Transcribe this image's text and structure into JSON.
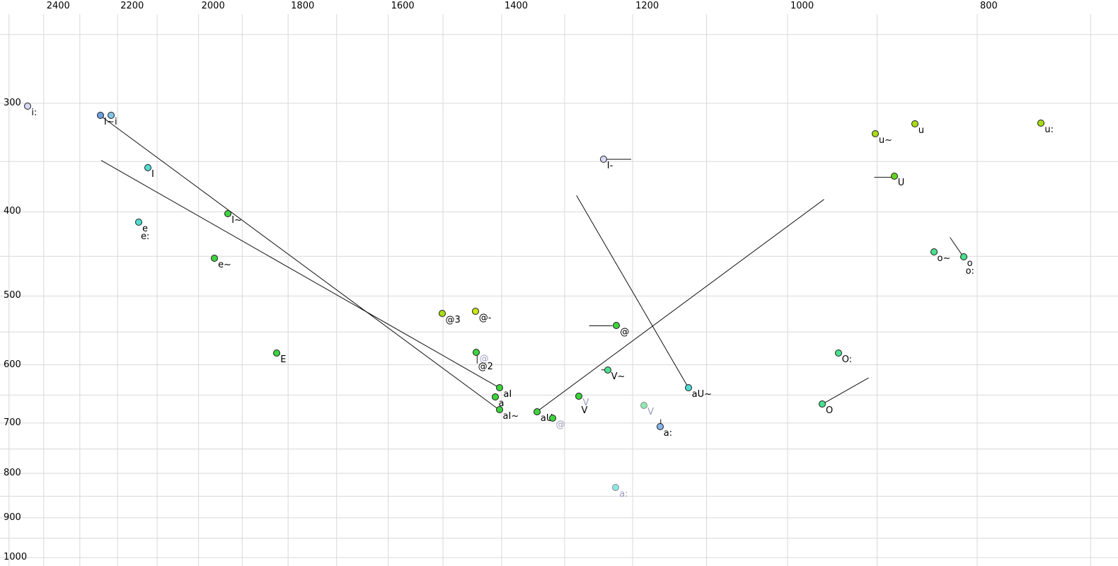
{
  "chart_data": {
    "type": "scatter",
    "title": "",
    "description": "Vowel formant plot (F2 horizontal reversed log scale in Hz, F1 vertical reversed-growth log scale in Hz) with vowel tokens and diphthong trajectory lines",
    "x_axis": {
      "unit": "Hz",
      "scale": "log",
      "reversed": true,
      "tick_labels": [
        "2400",
        "2200",
        "2000",
        "1800",
        "1600",
        "1400",
        "1200",
        "1000",
        "800"
      ],
      "tick_values": [
        2400,
        2200,
        2000,
        1800,
        1600,
        1400,
        1200,
        1000,
        800
      ],
      "gridline_values": [
        2500,
        2400,
        2300,
        2200,
        2100,
        2000,
        1900,
        1800,
        1700,
        1600,
        1500,
        1400,
        1300,
        1200,
        1100,
        1000,
        900,
        800,
        700
      ],
      "range": [
        2550,
        690
      ]
    },
    "y_axis": {
      "unit": "Hz",
      "scale": "log",
      "tick_labels": [
        "300",
        "400",
        "500",
        "600",
        "700",
        "800",
        "900",
        "1000"
      ],
      "tick_values": [
        300,
        400,
        500,
        600,
        700,
        800,
        900,
        1000
      ],
      "gridline_values": [
        250,
        300,
        350,
        400,
        450,
        500,
        550,
        600,
        650,
        700,
        750,
        800,
        850,
        900,
        950,
        1000
      ],
      "range": [
        245,
        1010
      ]
    },
    "grid": true,
    "legend": "none",
    "palette": {
      "green": "#3dd33d",
      "spring": "#4ae08e",
      "turquoise": "#50dcd2",
      "yellowgreen": "#a8dc14",
      "yellow": "#cbe60e",
      "ugreen": "#63d31c",
      "cornflower": "#6da0e2",
      "skyblue": "#85c6ea",
      "lavender": "#d8d8f4",
      "blue": "#85b5ea",
      "palegreen": "#8ce9ad",
      "palecyan": "#8ae8e4",
      "label_black": "#000000",
      "label_light": "#9d9dbd",
      "grid_gray": "#d9d9d9",
      "line_black": "#111111"
    },
    "points": [
      {
        "f2": 2445,
        "f1": 302,
        "fill": "lavender",
        "labels": [
          {
            "text": "i:",
            "color": "black"
          }
        ]
      },
      {
        "f2": 2245,
        "f1": 310,
        "fill": "cornflower",
        "labels": [
          {
            "text": "I~",
            "color": "black"
          }
        ]
      },
      {
        "f2": 2217,
        "f1": 310,
        "fill": "skyblue",
        "labels": [
          {
            "text": "i",
            "color": "black"
          }
        ]
      },
      {
        "f2": 2123,
        "f1": 356,
        "fill": "turquoise",
        "labels": [
          {
            "text": "I",
            "color": "black"
          }
        ]
      },
      {
        "f2": 2146,
        "f1": 411,
        "fill": "turquoise",
        "labels": [
          {
            "text": "e",
            "color": "black"
          },
          {
            "text": "e:",
            "color": "black"
          }
        ]
      },
      {
        "f2": 1932,
        "f1": 402,
        "fill": "green",
        "labels": [
          {
            "text": "I~",
            "color": "black"
          }
        ]
      },
      {
        "f2": 1963,
        "f1": 452,
        "fill": "green",
        "labels": [
          {
            "text": "e~",
            "color": "black"
          }
        ]
      },
      {
        "f2": 1824,
        "f1": 581,
        "fill": "green",
        "labels": [
          {
            "text": "E",
            "color": "black"
          }
        ]
      },
      {
        "f2": 1502,
        "f1": 524,
        "fill": "yellowgreen",
        "labels": [
          {
            "text": "@3",
            "color": "black"
          }
        ]
      },
      {
        "f2": 1444,
        "f1": 521,
        "fill": "yellow",
        "labels": [
          {
            "text": "@-",
            "color": "black"
          }
        ]
      },
      {
        "f2": 1443,
        "f1": 580,
        "fill": "green",
        "labels": [
          {
            "text": "@",
            "color": "light"
          },
          {
            "text": "@2",
            "color": "black"
          }
        ]
      },
      {
        "f2": 1403,
        "f1": 638,
        "fill": "green",
        "labels": [
          {
            "text": "aI",
            "color": "black"
          }
        ]
      },
      {
        "f2": 1411,
        "f1": 653,
        "fill": "green",
        "labels": [
          {
            "text": "a",
            "color": "black"
          }
        ]
      },
      {
        "f2": 1404,
        "f1": 676,
        "fill": "green",
        "labels": [
          {
            "text": "aI~",
            "color": "black"
          }
        ]
      },
      {
        "f2": 1343,
        "f1": 679,
        "fill": "green",
        "labels": [
          {
            "text": "aU",
            "color": "black"
          }
        ]
      },
      {
        "f2": 1319,
        "f1": 691,
        "fill": "green",
        "labels": [
          {
            "text": "@",
            "color": "light"
          }
        ]
      },
      {
        "f2": 1278,
        "f1": 652,
        "fill": "green",
        "labels": [
          {
            "text": "V",
            "color": "light"
          },
          {
            "text": "V",
            "color": "black"
          }
        ]
      },
      {
        "f2": 1184,
        "f1": 668,
        "fill": "palegreen",
        "stroke": "light",
        "labels": [
          {
            "text": "V",
            "color": "light"
          }
        ]
      },
      {
        "f2": 1162,
        "f1": 707,
        "fill": "blue",
        "labels": [
          {
            "text": "a:",
            "color": "black"
          }
        ]
      },
      {
        "f2": 1224,
        "f1": 831,
        "fill": "palecyan",
        "stroke": "light",
        "labels": [
          {
            "text": "a:",
            "color": "light"
          }
        ]
      },
      {
        "f2": 1236,
        "f1": 608,
        "fill": "spring",
        "labels": [
          {
            "text": "V~",
            "color": "black"
          }
        ]
      },
      {
        "f2": 1223,
        "f1": 541,
        "fill": "green",
        "labels": [
          {
            "text": "@",
            "color": "black"
          }
        ]
      },
      {
        "f2": 1242,
        "f1": 348,
        "fill": "lavender",
        "labels": [
          {
            "text": "I-",
            "color": "black"
          }
        ]
      },
      {
        "f2": 1124,
        "f1": 637,
        "fill": "turquoise",
        "labels": [
          {
            "text": "aU~",
            "color": "black"
          }
        ]
      },
      {
        "f2": 942,
        "f1": 581,
        "fill": "spring",
        "labels": [
          {
            "text": "O:",
            "color": "black"
          }
        ]
      },
      {
        "f2": 960,
        "f1": 666,
        "fill": "spring",
        "labels": [
          {
            "text": "O",
            "color": "black"
          }
        ]
      },
      {
        "f2": 842,
        "f1": 445,
        "fill": "spring",
        "labels": [
          {
            "text": "o~",
            "color": "black"
          }
        ]
      },
      {
        "f2": 813,
        "f1": 451,
        "fill": "spring",
        "labels": [
          {
            "text": "o",
            "color": "black"
          },
          {
            "text": "o:",
            "color": "black"
          }
        ]
      },
      {
        "f2": 902,
        "f1": 325,
        "fill": "yellowgreen",
        "labels": [
          {
            "text": "u~",
            "color": "black"
          }
        ]
      },
      {
        "f2": 861,
        "f1": 317,
        "fill": "yellowgreen",
        "labels": [
          {
            "text": "u",
            "color": "black"
          }
        ]
      },
      {
        "f2": 882,
        "f1": 364,
        "fill": "ugreen",
        "labels": [
          {
            "text": "U",
            "color": "black"
          }
        ]
      },
      {
        "f2": 742,
        "f1": 316,
        "fill": "yellowgreen",
        "labels": [
          {
            "text": "u:",
            "color": "black"
          }
        ]
      }
    ],
    "trajectories": [
      {
        "name": "I~ to aI~",
        "f2a": 2245,
        "f1a": 310,
        "f2b": 1404,
        "f1b": 676
      },
      {
        "name": "to aI",
        "f2a": 2243,
        "f1a": 349,
        "f2b": 1403,
        "f1b": 638
      },
      {
        "name": "aU rising",
        "f2a": 1343,
        "f1a": 679,
        "f2b": 958,
        "f1b": 387
      },
      {
        "name": "to aU~",
        "f2a": 1282,
        "f1a": 383,
        "f2b": 1124,
        "f1b": 637
      },
      {
        "name": "@2 tick",
        "f2a": 1441,
        "f1a": 585,
        "f2b": 1441,
        "f1b": 598
      },
      {
        "name": "a: tick",
        "f2a": 1161,
        "f1a": 693,
        "f2b": 1161,
        "f1b": 707
      },
      {
        "name": "@ tick",
        "f2a": 1263,
        "f1a": 541,
        "f2b": 1229,
        "f1b": 541
      },
      {
        "name": "I- tick",
        "f2a": 1242,
        "f1a": 348,
        "f2b": 1202,
        "f1b": 348
      },
      {
        "name": "U tick",
        "f2a": 903,
        "f1a": 365,
        "f2b": 885,
        "f1b": 365
      },
      {
        "name": "V~ tick",
        "f2a": 1245,
        "f1a": 608,
        "f2b": 1238,
        "f1b": 608
      },
      {
        "name": "o: tick",
        "f2a": 826,
        "f1a": 428,
        "f2b": 814,
        "f1b": 449
      },
      {
        "name": "O tick",
        "f2a": 959,
        "f1a": 665,
        "f2b": 909,
        "f1b": 621
      }
    ]
  }
}
